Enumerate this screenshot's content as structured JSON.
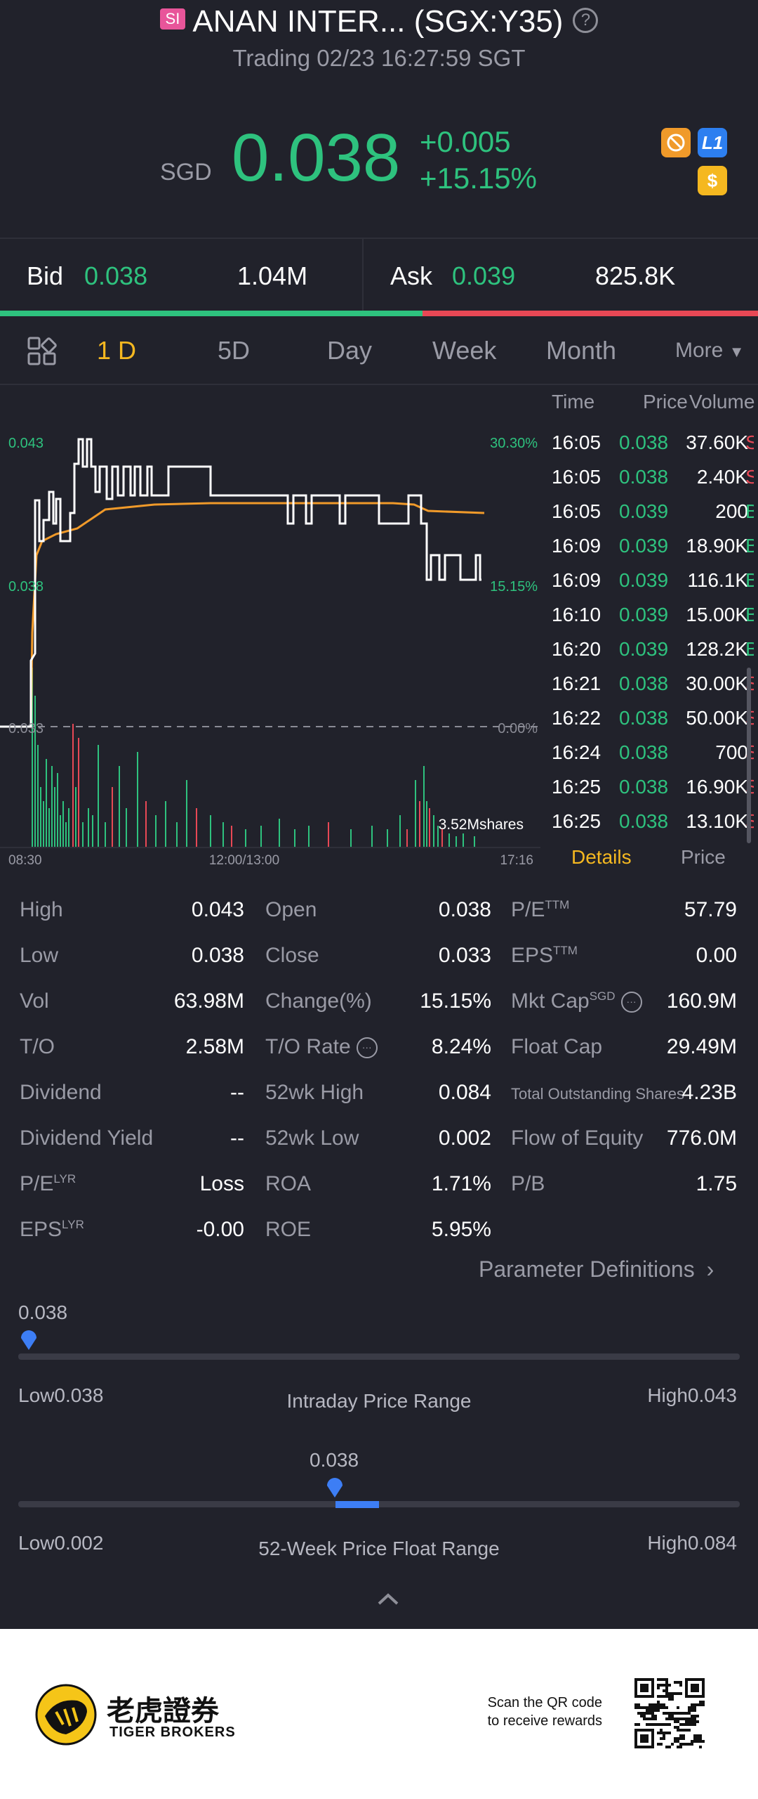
{
  "header": {
    "badge": "SI",
    "title": "ANAN INTER... (SGX:Y35)",
    "status": "Trading 02/23 16:27:59 SGT"
  },
  "quote": {
    "currency": "SGD",
    "price": "0.038",
    "change": "+0.005",
    "change_pct": "+15.15%",
    "icons": [
      "no-margin-icon",
      "level1-icon",
      "dollar-icon"
    ],
    "l1_label": "L1",
    "dollar_label": "$"
  },
  "bidask": {
    "bid_label": "Bid",
    "bid_price": "0.038",
    "bid_size": "1.04M",
    "ask_label": "Ask",
    "ask_price": "0.039",
    "ask_size": "825.8K",
    "bid_share": 0.557
  },
  "tabs": [
    "1 D",
    "5D",
    "Day",
    "Week",
    "Month",
    "More"
  ],
  "chart": {
    "y_high": "0.043",
    "y_mid": "0.038",
    "y_low": "0.033",
    "pct_high": "30.30%",
    "pct_mid": "15.15%",
    "pct_low": "0.00%",
    "volume_label": "3.52Mshares",
    "x_start": "08:30",
    "x_mid": "12:00/13:00",
    "x_end": "17:16"
  },
  "trades": {
    "headers": [
      "Time",
      "Price",
      "Volume"
    ],
    "rows": [
      {
        "time": "16:05",
        "price": "0.038",
        "vol": "37.60K",
        "side": "S"
      },
      {
        "time": "16:05",
        "price": "0.038",
        "vol": "2.40K",
        "side": "S"
      },
      {
        "time": "16:05",
        "price": "0.039",
        "vol": "200",
        "side": "B"
      },
      {
        "time": "16:09",
        "price": "0.039",
        "vol": "18.90K",
        "side": "B"
      },
      {
        "time": "16:09",
        "price": "0.039",
        "vol": "116.1K",
        "side": "B"
      },
      {
        "time": "16:10",
        "price": "0.039",
        "vol": "15.00K",
        "side": "B"
      },
      {
        "time": "16:20",
        "price": "0.039",
        "vol": "128.2K",
        "side": "B"
      },
      {
        "time": "16:21",
        "price": "0.038",
        "vol": "30.00K",
        "side": "S"
      },
      {
        "time": "16:22",
        "price": "0.038",
        "vol": "50.00K",
        "side": "S"
      },
      {
        "time": "16:24",
        "price": "0.038",
        "vol": "700",
        "side": "S"
      },
      {
        "time": "16:25",
        "price": "0.038",
        "vol": "16.90K",
        "side": "S"
      },
      {
        "time": "16:25",
        "price": "0.038",
        "vol": "13.10K",
        "side": "S"
      }
    ],
    "tab_details": "Details",
    "tab_price": "Price"
  },
  "stats": {
    "col1": [
      {
        "label": "High",
        "value": "0.043"
      },
      {
        "label": "Low",
        "value": "0.038"
      },
      {
        "label": "Vol",
        "value": "63.98M"
      },
      {
        "label": "T/O",
        "value": "2.58M"
      },
      {
        "label": "Dividend",
        "value": "--"
      },
      {
        "label": "Dividend Yield",
        "value": "--"
      },
      {
        "label": "P/E",
        "sup": "LYR",
        "value": "Loss"
      },
      {
        "label": "EPS",
        "sup": "LYR",
        "value": "-0.00"
      }
    ],
    "col2": [
      {
        "label": "Open",
        "value": "0.038"
      },
      {
        "label": "Close",
        "value": "0.033"
      },
      {
        "label": "Change(%)",
        "value": "15.15%"
      },
      {
        "label": "T/O Rate",
        "value": "8.24%"
      },
      {
        "label": "52wk High",
        "value": "0.084"
      },
      {
        "label": "52wk Low",
        "value": "0.002"
      },
      {
        "label": "ROA",
        "value": "1.71%"
      },
      {
        "label": "ROE",
        "value": "5.95%"
      }
    ],
    "col3": [
      {
        "label": "P/E",
        "sup": "TTM",
        "value": "57.79"
      },
      {
        "label": "EPS",
        "sup": "TTM",
        "value": "0.00"
      },
      {
        "label": "Mkt Cap",
        "sup": "SGD",
        "value": "160.9M"
      },
      {
        "label": "Float Cap",
        "value": "29.49M"
      },
      {
        "label": "Total Outstanding Shares",
        "value": "4.23B"
      },
      {
        "label": "Flow of Equity",
        "value": "776.0M"
      },
      {
        "label": "P/B",
        "value": "1.75"
      }
    ],
    "param_link": "Parameter Definitions"
  },
  "ranges": {
    "intraday": {
      "current": "0.038",
      "low_label": "Low",
      "low": "0.038",
      "high_label": "High",
      "high": "0.043",
      "title": "Intraday Price Range",
      "position": 0.0
    },
    "week52": {
      "current": "0.038",
      "low_label": "Low",
      "low": "0.002",
      "high_label": "High",
      "high": "0.084",
      "title": "52-Week Price Float Range",
      "position": 0.44
    }
  },
  "footer": {
    "brand_cn": "老虎證券",
    "brand_en": "TIGER BROKERS",
    "scan_line1": "Scan the QR code",
    "scan_line2": "to receive rewards"
  },
  "colors": {
    "up": "#2ec27e",
    "down": "#e84855",
    "accent": "#f5b820",
    "avg": "#f09a2a",
    "bg": "#21222b"
  }
}
